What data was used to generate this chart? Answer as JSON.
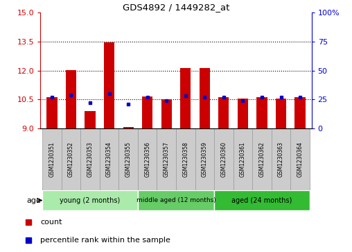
{
  "title": "GDS4892 / 1449282_at",
  "samples": [
    "GSM1230351",
    "GSM1230352",
    "GSM1230353",
    "GSM1230354",
    "GSM1230355",
    "GSM1230356",
    "GSM1230357",
    "GSM1230358",
    "GSM1230359",
    "GSM1230360",
    "GSM1230361",
    "GSM1230362",
    "GSM1230363",
    "GSM1230364"
  ],
  "count_values": [
    10.62,
    12.02,
    9.9,
    13.45,
    9.06,
    10.65,
    10.5,
    12.12,
    12.12,
    10.62,
    10.55,
    10.62,
    10.56,
    10.62
  ],
  "percentile_values": [
    27,
    29,
    22,
    30,
    21,
    27,
    24,
    28,
    27,
    27,
    24,
    27,
    27,
    27
  ],
  "ymin": 9,
  "ymax": 15,
  "y_ticks_left": [
    9,
    10.5,
    12,
    13.5,
    15
  ],
  "y_ticks_right": [
    0,
    25,
    50,
    75,
    100
  ],
  "groups": [
    {
      "label": "young (2 months)",
      "start": 0,
      "end": 5
    },
    {
      "label": "middle aged (12 months)",
      "start": 5,
      "end": 9
    },
    {
      "label": "aged (24 months)",
      "start": 9,
      "end": 14
    }
  ],
  "group_colors": [
    "#aaeaaa",
    "#66cc66",
    "#33bb33"
  ],
  "bar_color": "#cc0000",
  "blue_color": "#0000cc",
  "bar_width": 0.55,
  "grid_color": "black",
  "tick_label_color_left": "#cc0000",
  "tick_label_color_right": "#0000cc",
  "age_label": "age",
  "legend_count": "count",
  "legend_percentile": "percentile rank within the sample",
  "sample_box_color": "#cccccc",
  "sample_box_edge": "#999999"
}
